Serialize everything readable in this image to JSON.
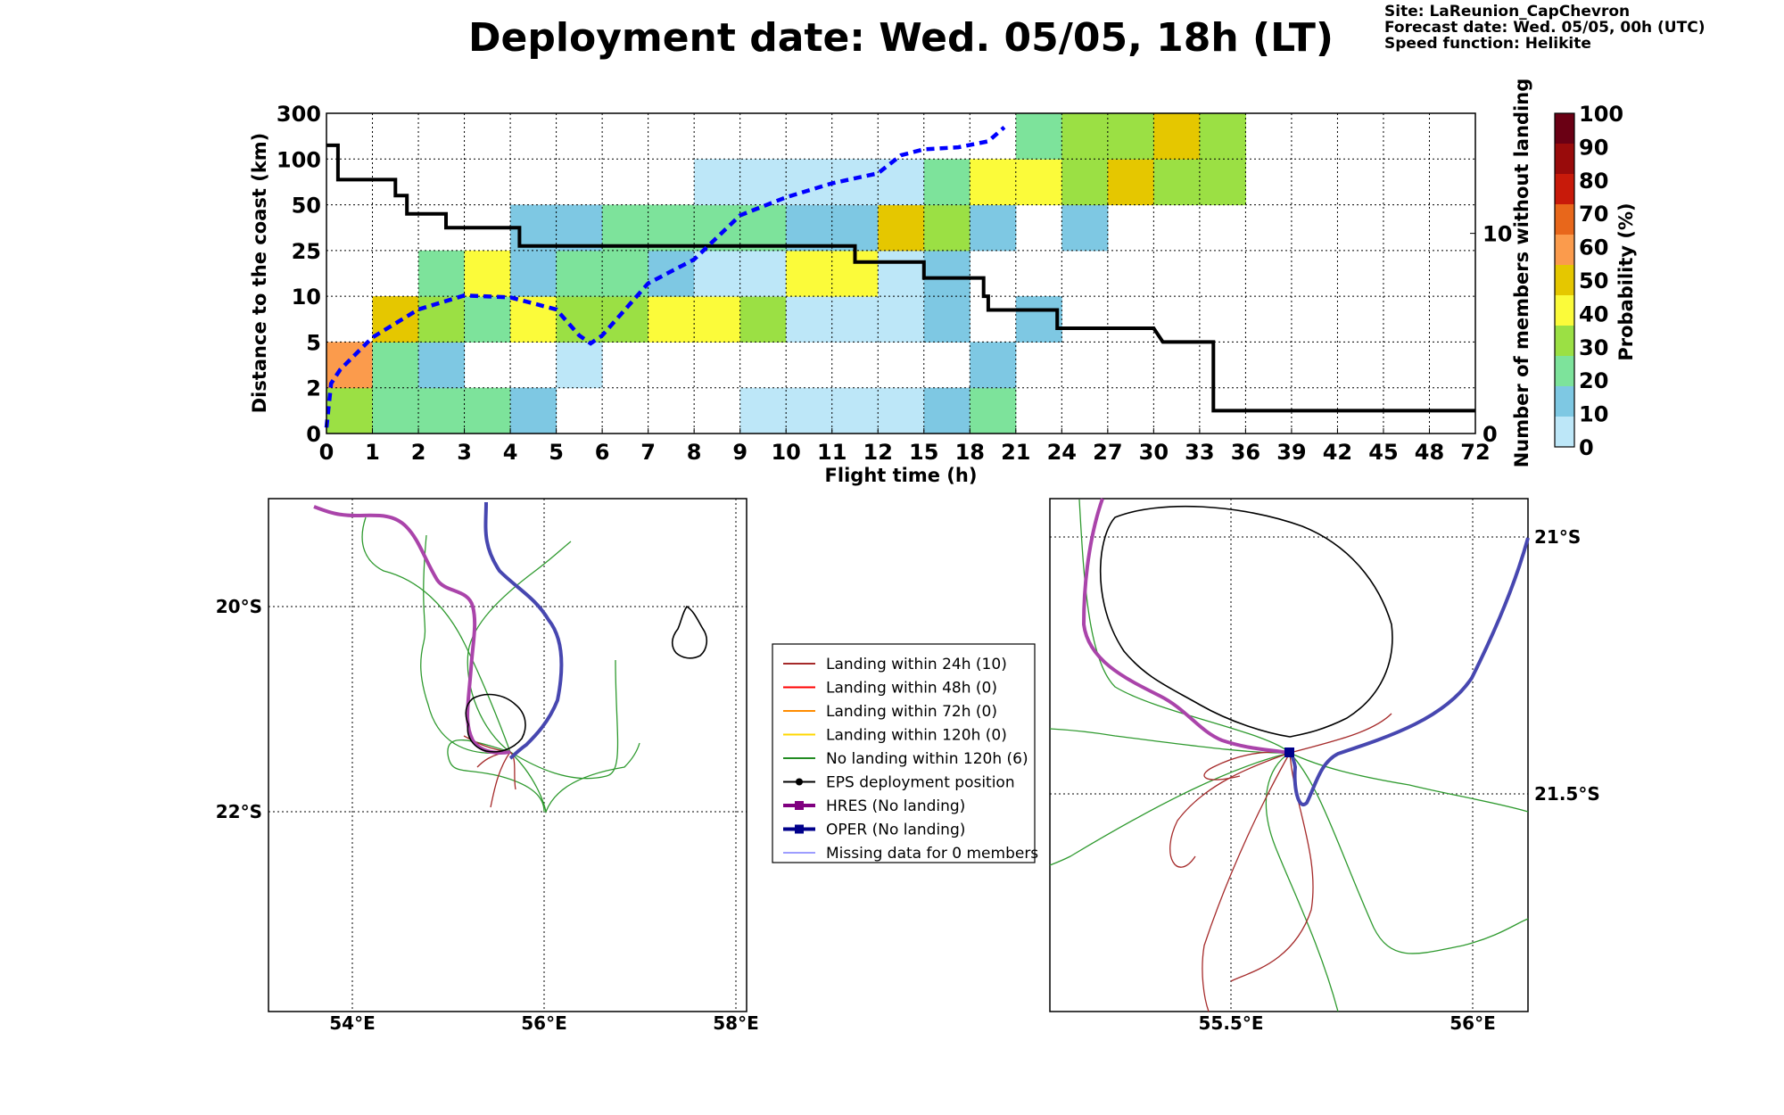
{
  "header": {
    "title": "Deployment date: Wed. 05/05, 18h (LT)",
    "site": "Site: LaReunion_CapChevron",
    "forecast_date": "Forecast date: Wed. 05/05, 00h (UTC)",
    "speed_function": "Speed function: Helikite"
  },
  "chart_data": [
    {
      "type": "heatmap",
      "xlabel": "Flight time (h)",
      "ylabel": "Distance to the coast (km)",
      "y2label": "Number of members without landing",
      "x_ticks": [
        "0",
        "1",
        "2",
        "3",
        "4",
        "5",
        "6",
        "7",
        "8",
        "9",
        "10",
        "11",
        "12",
        "15",
        "18",
        "21",
        "24",
        "27",
        "30",
        "33",
        "36",
        "39",
        "42",
        "45",
        "48",
        "72"
      ],
      "y_ticks": [
        "0",
        "2",
        "5",
        "10",
        "25",
        "50",
        "100",
        "300"
      ],
      "y2_ticks": [
        "0",
        "10"
      ],
      "y2lim": [
        0,
        16
      ],
      "colorbar": {
        "label": "Probability (%)",
        "ticks": [
          "0",
          "10",
          "20",
          "30",
          "40",
          "50",
          "60",
          "70",
          "80",
          "90",
          "100"
        ],
        "colors": [
          "#bde7f8",
          "#7ec8e3",
          "#7de39b",
          "#9be044",
          "#fbfb3a",
          "#e5c700",
          "#fb9b4c",
          "#e8671b",
          "#c81a0a",
          "#990b0b",
          "#6a0014"
        ]
      },
      "cells": [
        {
          "x": 0,
          "y": 0,
          "p": 30
        },
        {
          "x": 1,
          "y": 0,
          "p": 20
        },
        {
          "x": 2,
          "y": 0,
          "p": 20
        },
        {
          "x": 3,
          "y": 0,
          "p": 20
        },
        {
          "x": 4,
          "y": 0,
          "p": 10
        },
        {
          "x": 9,
          "y": 0,
          "p": 0
        },
        {
          "x": 10,
          "y": 0,
          "p": 0
        },
        {
          "x": 11,
          "y": 0,
          "p": 0
        },
        {
          "x": 12,
          "y": 0,
          "p": 0
        },
        {
          "x": 13,
          "y": 0,
          "p": 10
        },
        {
          "x": 14,
          "y": 0,
          "p": 20
        },
        {
          "x": 0,
          "y": 1,
          "p": 60
        },
        {
          "x": 1,
          "y": 1,
          "p": 20
        },
        {
          "x": 2,
          "y": 1,
          "p": 10
        },
        {
          "x": 5,
          "y": 1,
          "p": 0
        },
        {
          "x": 14,
          "y": 1,
          "p": 10
        },
        {
          "x": 1,
          "y": 2,
          "p": 50
        },
        {
          "x": 2,
          "y": 2,
          "p": 30
        },
        {
          "x": 3,
          "y": 2,
          "p": 20
        },
        {
          "x": 4,
          "y": 2,
          "p": 40
        },
        {
          "x": 5,
          "y": 2,
          "p": 30
        },
        {
          "x": 6,
          "y": 2,
          "p": 30
        },
        {
          "x": 7,
          "y": 2,
          "p": 40
        },
        {
          "x": 8,
          "y": 2,
          "p": 40
        },
        {
          "x": 9,
          "y": 2,
          "p": 30
        },
        {
          "x": 10,
          "y": 2,
          "p": 0
        },
        {
          "x": 11,
          "y": 2,
          "p": 0
        },
        {
          "x": 12,
          "y": 2,
          "p": 0
        },
        {
          "x": 13,
          "y": 2,
          "p": 10
        },
        {
          "x": 15,
          "y": 2,
          "p": 10
        },
        {
          "x": 2,
          "y": 3,
          "p": 20
        },
        {
          "x": 3,
          "y": 3,
          "p": 40
        },
        {
          "x": 4,
          "y": 3,
          "p": 10
        },
        {
          "x": 5,
          "y": 3,
          "p": 20
        },
        {
          "x": 6,
          "y": 3,
          "p": 20
        },
        {
          "x": 7,
          "y": 3,
          "p": 10
        },
        {
          "x": 8,
          "y": 3,
          "p": 0
        },
        {
          "x": 9,
          "y": 3,
          "p": 0
        },
        {
          "x": 10,
          "y": 3,
          "p": 40
        },
        {
          "x": 11,
          "y": 3,
          "p": 40
        },
        {
          "x": 12,
          "y": 3,
          "p": 0
        },
        {
          "x": 13,
          "y": 3,
          "p": 10
        },
        {
          "x": 4,
          "y": 4,
          "p": 10
        },
        {
          "x": 5,
          "y": 4,
          "p": 10
        },
        {
          "x": 6,
          "y": 4,
          "p": 20
        },
        {
          "x": 7,
          "y": 4,
          "p": 20
        },
        {
          "x": 8,
          "y": 4,
          "p": 20
        },
        {
          "x": 9,
          "y": 4,
          "p": 20
        },
        {
          "x": 10,
          "y": 4,
          "p": 10
        },
        {
          "x": 11,
          "y": 4,
          "p": 10
        },
        {
          "x": 12,
          "y": 4,
          "p": 50
        },
        {
          "x": 13,
          "y": 4,
          "p": 30
        },
        {
          "x": 14,
          "y": 4,
          "p": 10
        },
        {
          "x": 16,
          "y": 4,
          "p": 10
        },
        {
          "x": 8,
          "y": 5,
          "p": 0
        },
        {
          "x": 9,
          "y": 5,
          "p": 0
        },
        {
          "x": 10,
          "y": 5,
          "p": 0
        },
        {
          "x": 11,
          "y": 5,
          "p": 0
        },
        {
          "x": 12,
          "y": 5,
          "p": 0
        },
        {
          "x": 13,
          "y": 5,
          "p": 20
        },
        {
          "x": 14,
          "y": 5,
          "p": 40
        },
        {
          "x": 15,
          "y": 5,
          "p": 40
        },
        {
          "x": 16,
          "y": 5,
          "p": 30
        },
        {
          "x": 17,
          "y": 5,
          "p": 50
        },
        {
          "x": 18,
          "y": 5,
          "p": 30
        },
        {
          "x": 19,
          "y": 5,
          "p": 30
        },
        {
          "x": 15,
          "y": 6,
          "p": 20
        },
        {
          "x": 16,
          "y": 6,
          "p": 30
        },
        {
          "x": 17,
          "y": 6,
          "p": 30
        },
        {
          "x": 18,
          "y": 6,
          "p": 50
        },
        {
          "x": 19,
          "y": 6,
          "p": 30
        }
      ],
      "series": [
        {
          "style": "black-solid",
          "description_axis": "left",
          "points": [
            [
              0,
              6.3
            ],
            [
              0.25,
              6.3
            ],
            [
              0.25,
              5.55
            ],
            [
              1.5,
              5.55
            ],
            [
              1.5,
              5.2
            ],
            [
              1.75,
              5.2
            ],
            [
              1.75,
              4.8
            ],
            [
              2.6,
              4.8
            ],
            [
              2.6,
              4.5
            ],
            [
              4.2,
              4.5
            ],
            [
              4.2,
              4.1
            ],
            [
              11.5,
              4.1
            ],
            [
              11.5,
              3.75
            ],
            [
              13,
              3.75
            ],
            [
              13,
              3.4
            ],
            [
              14.3,
              3.4
            ],
            [
              14.3,
              3.0
            ],
            [
              14.4,
              3.0
            ],
            [
              14.4,
              2.7
            ],
            [
              15.9,
              2.7
            ],
            [
              15.9,
              2.3
            ],
            [
              18,
              2.3
            ],
            [
              18.2,
              2.0
            ],
            [
              19.3,
              2.0
            ],
            [
              19.3,
              0.5
            ],
            [
              25,
              0.5
            ]
          ]
        },
        {
          "style": "blue-dashed",
          "description_axis": "right",
          "points": [
            [
              0,
              0.3
            ],
            [
              0.1,
              2.5
            ],
            [
              0.3,
              3.2
            ],
            [
              1,
              4.8
            ],
            [
              2,
              6.2
            ],
            [
              3,
              6.9
            ],
            [
              4,
              6.8
            ],
            [
              5,
              6.2
            ],
            [
              5.5,
              4.9
            ],
            [
              5.75,
              4.5
            ],
            [
              6,
              4.9
            ],
            [
              6.5,
              6.2
            ],
            [
              7,
              7.5
            ],
            [
              8,
              8.7
            ],
            [
              9,
              10.9
            ],
            [
              10,
              11.8
            ],
            [
              11,
              12.5
            ],
            [
              12,
              13
            ],
            [
              12.5,
              13.9
            ],
            [
              13,
              14.2
            ],
            [
              13.75,
              14.3
            ],
            [
              14.4,
              14.6
            ],
            [
              14.75,
              15.3
            ]
          ]
        }
      ]
    },
    {
      "type": "scatter",
      "subtype": "map",
      "x_ticks": [
        "54°E",
        "56°E",
        "58°E"
      ],
      "y_ticks": [
        "20°S",
        "22°S"
      ],
      "xlim": [
        53.2,
        57.9
      ],
      "ylim": [
        -23.9,
        -18.9
      ]
    },
    {
      "type": "scatter",
      "subtype": "map-zoom",
      "x_ticks": [
        "55.5°E",
        "56°E"
      ],
      "y_ticks": [
        "21°S",
        "21.5°S"
      ]
    }
  ],
  "legend": {
    "items": [
      {
        "label": "Landing within 24h (10)",
        "color": "#a52a2a",
        "marker": "none",
        "width": 2
      },
      {
        "label": "Landing within 48h (0)",
        "color": "#ff0000",
        "marker": "none",
        "width": 2
      },
      {
        "label": "Landing within 72h (0)",
        "color": "#ff8c00",
        "marker": "none",
        "width": 2
      },
      {
        "label": "Landing within 120h (0)",
        "color": "#ffd700",
        "marker": "none",
        "width": 2
      },
      {
        "label": "No landing within 120h (6)",
        "color": "#228b22",
        "marker": "none",
        "width": 2
      },
      {
        "label": "EPS deployment position",
        "color": "#000000",
        "marker": "circle",
        "width": 2
      },
      {
        "label": "HRES (No landing)",
        "color": "#800080",
        "marker": "square",
        "width": 4
      },
      {
        "label": "OPER (No landing)",
        "color": "#00008b",
        "marker": "square",
        "width": 4
      },
      {
        "label": "Missing data for 0 members",
        "color": "#3b3bff",
        "marker": "none",
        "width": 1
      }
    ]
  },
  "colors": {
    "hres": "#aa44aa",
    "oper": "#4747b0",
    "landing24": "#a52a2a",
    "nolanding": "#2f9a2f"
  }
}
